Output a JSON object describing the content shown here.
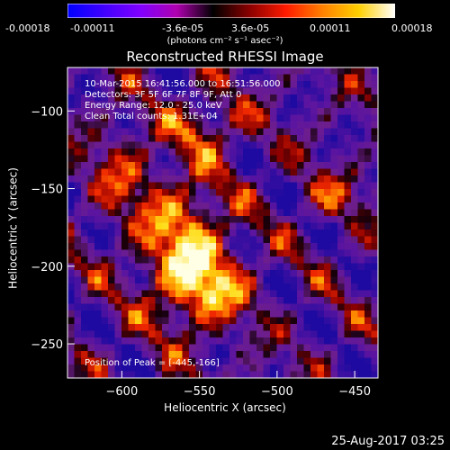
{
  "colorbar": {
    "ticks": [
      "-0.00018",
      "-0.00011",
      "-3.6e-05",
      "3.6e-05",
      "0.00011",
      "0.00018"
    ],
    "units": "(photons cm⁻² s⁻¹ asec⁻²)",
    "colormap": [
      "#0000ff",
      "#4000ff",
      "#8000ff",
      "#b000b0",
      "#000000",
      "#8a0000",
      "#ff1a00",
      "#ff8000",
      "#ffd000",
      "#ffffff"
    ]
  },
  "title": "Reconstructed RHESSI Image",
  "info": {
    "time": "10-Mar-2015 16:41:56.000 to 16:51:56.000",
    "detectors": "Detectors: 3F 5F 6F 7F 8F 9F, Att 0",
    "energy": "Energy Range: 12.0 - 25.0 keV",
    "clean": "Clean     Total counts: 1.31E+04",
    "position": "Position of Peak = [-445,-166]"
  },
  "timestamp": "25-Aug-2017 03:25",
  "chart_data": {
    "type": "heatmap",
    "title": "Reconstructed RHESSI Image",
    "xlabel": "Heliocentric X (arcsec)",
    "ylabel": "Heliocentric Y (arcsec)",
    "xlim": [
      -635,
      -435
    ],
    "ylim": [
      -272,
      -72
    ],
    "xticks": [
      -600,
      -550,
      -500,
      -450
    ],
    "yticks": [
      -250,
      -200,
      -150,
      -100
    ],
    "xticklabels": [
      "−600",
      "−550",
      "−500",
      "−450"
    ],
    "yticklabels": [
      "−250",
      "−200",
      "−150",
      "−100"
    ],
    "value_range": [
      -0.00018,
      0.00018
    ],
    "peak": [
      -445,
      -166
    ],
    "grid": false,
    "note_hot_regions": "bright emission concentrated near x -580 to -530, y -230 to -130"
  }
}
